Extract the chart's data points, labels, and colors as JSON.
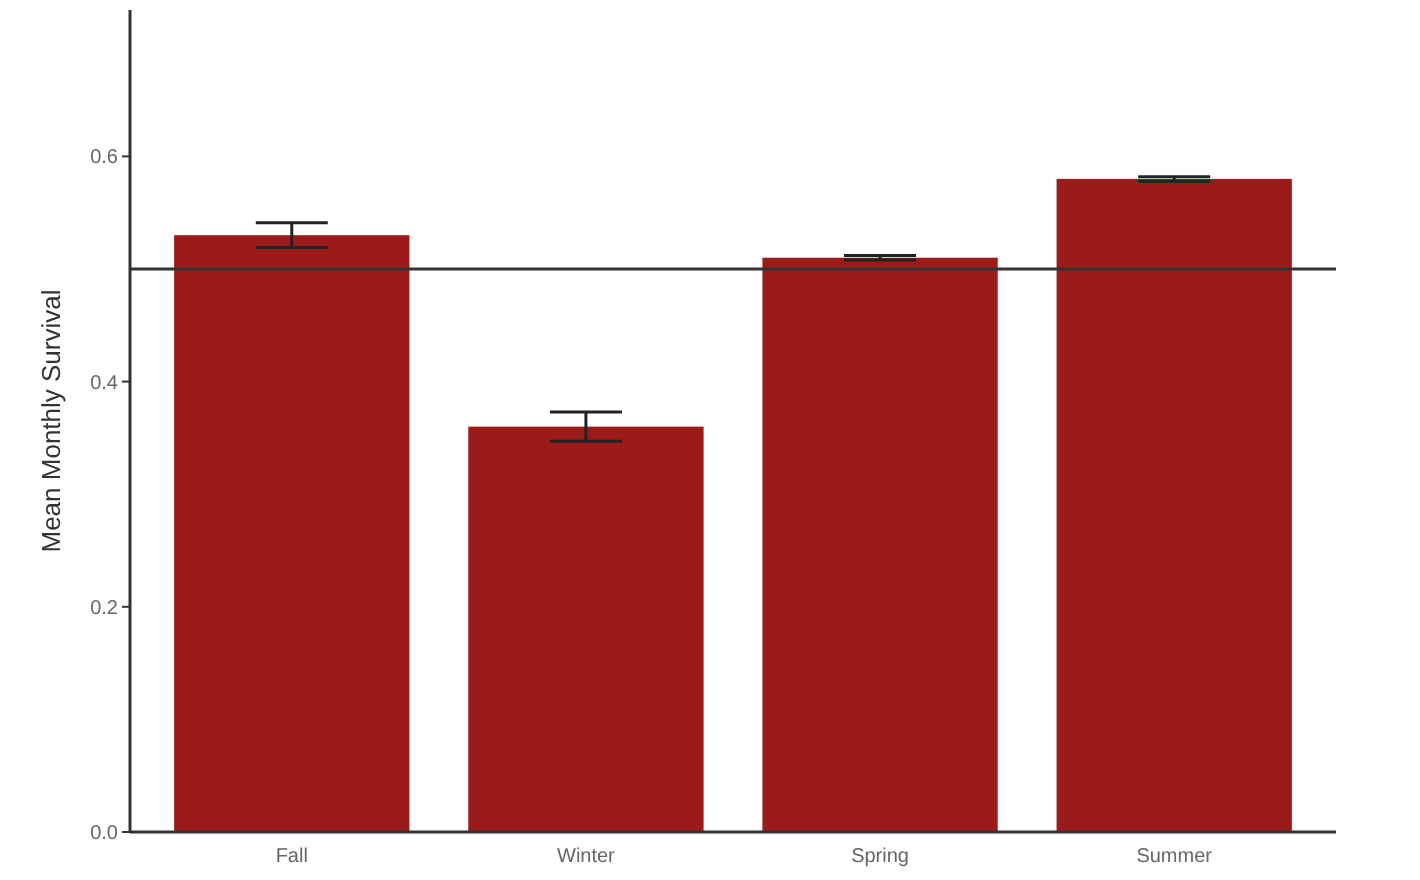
{
  "chart_data": {
    "type": "bar",
    "ylabel": "Mean Monthly Survival",
    "categories": [
      "Fall",
      "Winter",
      "Spring",
      "Summer"
    ],
    "values": [
      0.53,
      0.36,
      0.51,
      0.58
    ],
    "errors": [
      0.011,
      0.013,
      0.002,
      0.002
    ],
    "color": "#9b1b1b",
    "ylim": [
      0,
      0.73
    ],
    "yticks": [
      {
        "value": 0,
        "label": "0.0"
      },
      0.2,
      0.4,
      0.6
    ],
    "ref_lines": [
      {
        "axis": "y",
        "value": 0.5,
        "color": "#333333"
      }
    ],
    "grid": false
  }
}
